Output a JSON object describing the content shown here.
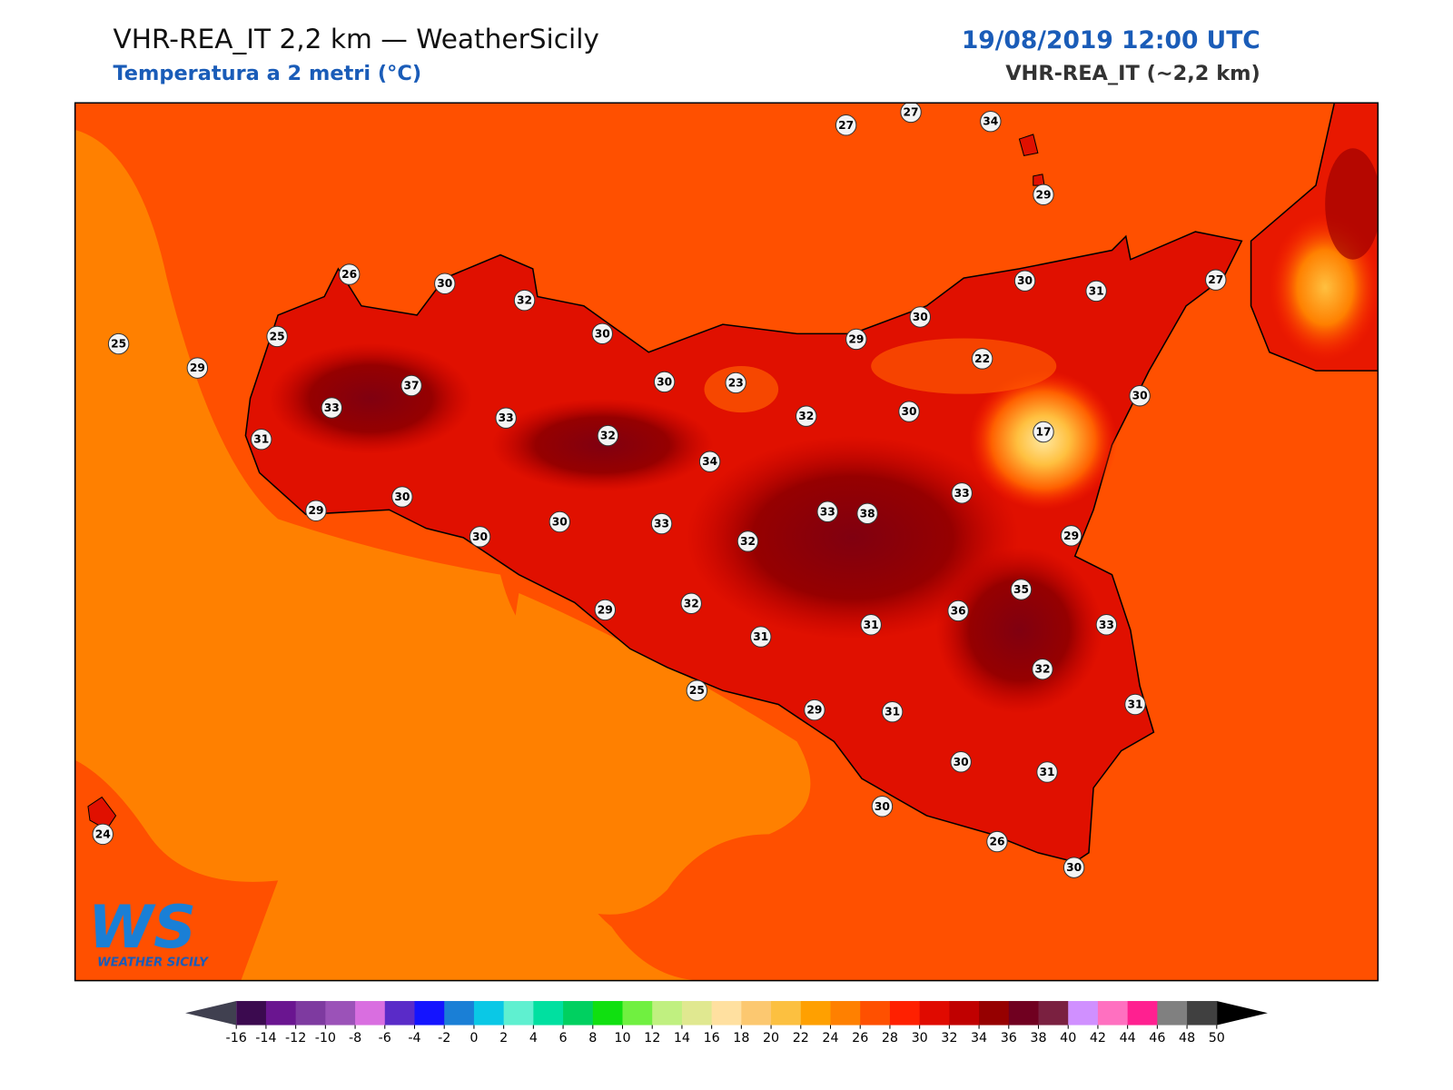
{
  "header": {
    "title": "VHR-REA_IT 2,2 km — WeatherSicily",
    "subtitle": "Temperatura a 2 metri (°C)",
    "date": "19/08/2019 12:00 UTC",
    "model": "VHR-REA_IT (~2,2 km)"
  },
  "logo": {
    "mark": "WS",
    "name": "WEATHER SICILY"
  },
  "stations": [
    27,
    27,
    34,
    29,
    26,
    30,
    32,
    30,
    25,
    25,
    29,
    37,
    33,
    33,
    30,
    23,
    32,
    32,
    29,
    30,
    30,
    31,
    27,
    22,
    30,
    30,
    17,
    31,
    34,
    33,
    33,
    38,
    30,
    29,
    30,
    30,
    33,
    32,
    29,
    35,
    32,
    29,
    31,
    31,
    36,
    33,
    32,
    31,
    25,
    29,
    31,
    30,
    31,
    30,
    26,
    30,
    24
  ],
  "colorbar": {
    "ticks": [
      -16,
      -14,
      -12,
      -10,
      -8,
      -6,
      -4,
      -2,
      0,
      2,
      4,
      6,
      8,
      10,
      12,
      14,
      16,
      18,
      20,
      22,
      24,
      26,
      28,
      30,
      32,
      34,
      36,
      38,
      40,
      42,
      44,
      46,
      48,
      50
    ],
    "colors": [
      "#3b0a4f",
      "#6a1590",
      "#7e3aa0",
      "#9b52b8",
      "#d96ee0",
      "#5a2bc8",
      "#1414ff",
      "#1a7fd6",
      "#0ac8e6",
      "#5ff0d0",
      "#00e0a0",
      "#00d060",
      "#10e010",
      "#70f040",
      "#c0f080",
      "#e0e890",
      "#ffe0a0",
      "#fcc870",
      "#fcc040",
      "#ffa000",
      "#ff8000",
      "#ff5000",
      "#ff2000",
      "#e00a00",
      "#c00000",
      "#960000",
      "#700020",
      "#7a2040",
      "#d090ff",
      "#ff70c0",
      "#ff2090",
      "#808080",
      "#404040"
    ],
    "under": "#404050",
    "over": "#000000"
  }
}
